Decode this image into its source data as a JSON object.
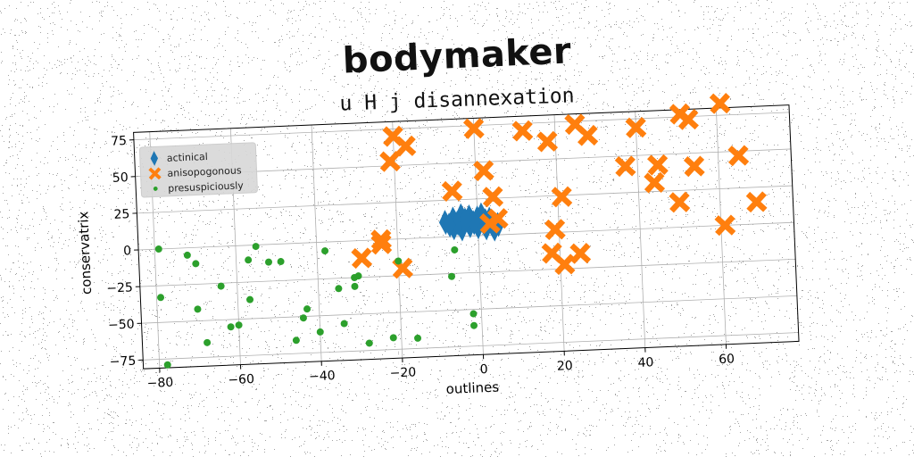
{
  "chart_data": {
    "type": "scatter",
    "title": "bodymaker",
    "subtitle": "u H j disannexation",
    "xlabel": "outlines",
    "ylabel": "conservatrix",
    "xlim": [
      -84,
      78
    ],
    "ylim": [
      -81,
      80
    ],
    "xticks": [
      -80,
      -60,
      -40,
      -20,
      0,
      20,
      40,
      60
    ],
    "yticks": [
      -75,
      -50,
      -25,
      0,
      25,
      50,
      75
    ],
    "grid": true,
    "legend_position": "top-left",
    "series": [
      {
        "name": "actinical",
        "marker": "diamond",
        "color": "#1f77b4",
        "points": [
          [
            -8,
            10
          ],
          [
            -6,
            12
          ],
          [
            -4,
            14
          ],
          [
            -2,
            13
          ],
          [
            0,
            12
          ],
          [
            2,
            10
          ],
          [
            4,
            8
          ],
          [
            -6,
            6
          ],
          [
            -4,
            5
          ],
          [
            -2,
            7
          ],
          [
            0,
            6
          ],
          [
            2,
            5
          ],
          [
            4,
            4
          ],
          [
            -5,
            9
          ],
          [
            -1,
            9
          ],
          [
            3,
            11
          ],
          [
            1,
            14
          ],
          [
            -3,
            11
          ],
          [
            -7,
            8
          ],
          [
            5,
            7
          ]
        ]
      },
      {
        "name": "anisopogonous",
        "marker": "x",
        "color": "#ff7f0e",
        "points": [
          [
            -20,
            70
          ],
          [
            -17,
            63
          ],
          [
            -21,
            53
          ],
          [
            0,
            73
          ],
          [
            2,
            44
          ],
          [
            -6,
            31
          ],
          [
            4,
            26
          ],
          [
            3,
            8
          ],
          [
            5,
            11
          ],
          [
            -24,
            0
          ],
          [
            -24,
            -3
          ],
          [
            -29,
            -12
          ],
          [
            -19,
            -20
          ],
          [
            12,
            70
          ],
          [
            18,
            62
          ],
          [
            25,
            73
          ],
          [
            28,
            65
          ],
          [
            21,
            24
          ],
          [
            19,
            2
          ],
          [
            18,
            -14
          ],
          [
            21,
            -22
          ],
          [
            25,
            -15
          ],
          [
            40,
            69
          ],
          [
            37,
            43
          ],
          [
            45,
            43
          ],
          [
            44,
            31
          ],
          [
            51,
            77
          ],
          [
            53,
            73
          ],
          [
            54,
            41
          ],
          [
            50,
            17
          ],
          [
            61,
            83
          ],
          [
            65,
            47
          ],
          [
            69,
            15
          ],
          [
            61,
            0
          ]
        ]
      },
      {
        "name": "presuspiciously",
        "marker": "dot",
        "color": "#2ca02c",
        "points": [
          [
            -79,
            0
          ],
          [
            -79,
            -33
          ],
          [
            -72,
            -5
          ],
          [
            -70,
            -11
          ],
          [
            -70,
            -42
          ],
          [
            -68,
            -65
          ],
          [
            -64,
            -27
          ],
          [
            -62,
            -55
          ],
          [
            -60,
            -54
          ],
          [
            -57,
            -10
          ],
          [
            -57,
            -37
          ],
          [
            -55,
            -1
          ],
          [
            -52,
            -12
          ],
          [
            -49,
            -12
          ],
          [
            -46,
            -66
          ],
          [
            -44,
            -51
          ],
          [
            -43,
            -45
          ],
          [
            -40,
            -61
          ],
          [
            -38,
            -6
          ],
          [
            -35,
            -32
          ],
          [
            -34,
            -56
          ],
          [
            -31,
            -31
          ],
          [
            -31,
            -25
          ],
          [
            -30,
            -24
          ],
          [
            -28,
            -70
          ],
          [
            -22,
            -67
          ],
          [
            -20,
            -15
          ],
          [
            -16,
            -68
          ],
          [
            -7,
            -27
          ],
          [
            -6,
            -9
          ],
          [
            -2,
            -53
          ],
          [
            -2,
            -61
          ],
          [
            -78,
            -79
          ]
        ]
      }
    ]
  },
  "colors": {
    "grid": "#b0b0b0",
    "axis": "#000000",
    "legend_bg": "#d8d8d8"
  }
}
